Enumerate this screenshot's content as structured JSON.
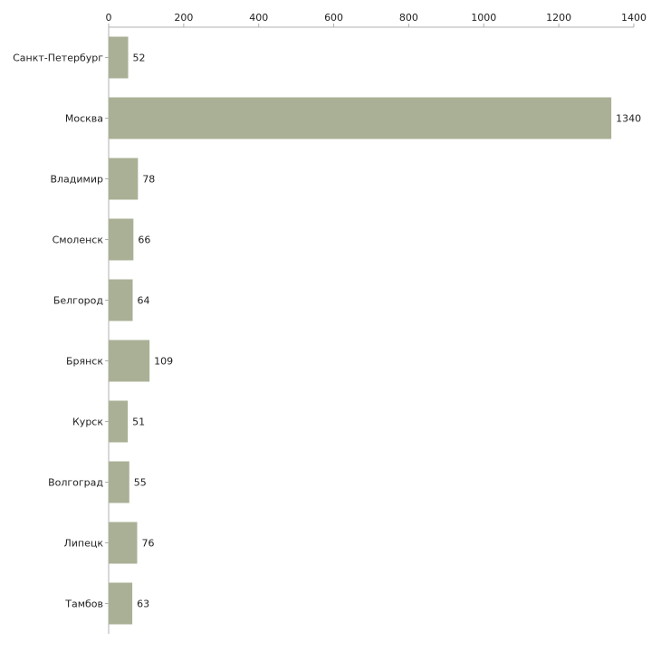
{
  "chart_data": {
    "type": "bar",
    "orientation": "horizontal",
    "categories": [
      "Санкт-Петербург",
      "Москва",
      "Владимир",
      "Смоленск",
      "Белгород",
      "Брянск",
      "Курск",
      "Волгоград",
      "Липецк",
      "Тамбов"
    ],
    "values": [
      52,
      1340,
      78,
      66,
      64,
      109,
      51,
      55,
      76,
      63
    ],
    "value_labels": [
      "52",
      "1340",
      "78",
      "66",
      "64",
      "109",
      "51",
      "55",
      "76",
      "63"
    ],
    "xlim": [
      0,
      1400
    ],
    "xticks": [
      0,
      200,
      400,
      600,
      800,
      1000,
      1200,
      1400
    ],
    "xtick_labels": [
      "0",
      "200",
      "400",
      "600",
      "800",
      "1000",
      "1200",
      "1400"
    ],
    "axis_position": "top",
    "grid": false,
    "bar_color": "#aab095",
    "axis_color": "#b0b0b0",
    "title": "",
    "xlabel": "",
    "ylabel": ""
  }
}
